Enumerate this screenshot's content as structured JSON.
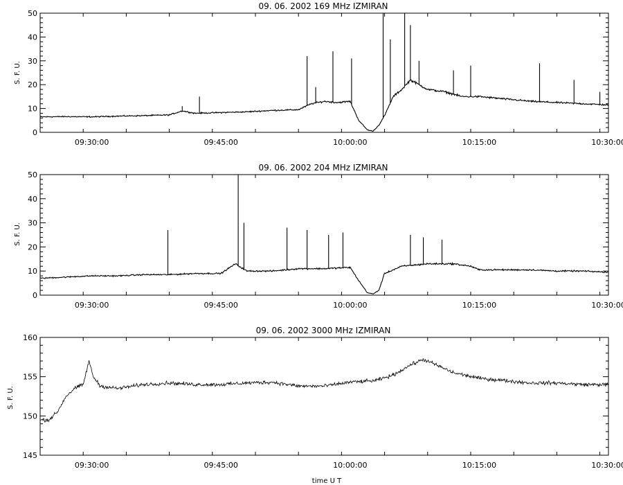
{
  "chart_data": [
    {
      "type": "line",
      "title": "09.  06.  2002    169 MHz     IZMIRAN",
      "ylabel": "S. F. U.",
      "xlabel": "",
      "x_unit": "UT (HH:MM:SS)",
      "xlim": [
        "09:24:00",
        "10:30:00"
      ],
      "ylim": [
        0,
        50
      ],
      "x_tick_labels": [
        "09:30:00",
        "09:45:00",
        "10:00:00",
        "10:15:00",
        "10:30:00"
      ],
      "y_tick_labels": [
        "0",
        "10",
        "20",
        "30",
        "40",
        "50"
      ],
      "legend": "none",
      "grid": false,
      "series": [
        {
          "x": [
            "09:24:00",
            "09:27:00",
            "09:30:00",
            "09:33:00",
            "09:36:00",
            "09:39:00",
            "09:40:30",
            "09:42:00",
            "09:45:00",
            "09:48:00",
            "09:51:00",
            "09:54:00",
            "09:55:30",
            "09:57:00",
            "09:58:30",
            "10:00:00",
            "10:01:00",
            "10:02:00",
            "10:02:40",
            "10:03:20",
            "10:04:00",
            "10:05:00",
            "10:06:00",
            "10:07:00",
            "10:09:00",
            "10:11:00",
            "10:13:00",
            "10:15:00",
            "10:18:00",
            "10:21:00",
            "10:24:00",
            "10:27:00",
            "10:30:00"
          ],
          "y": [
            6.5,
            6.6,
            6.5,
            6.8,
            7.0,
            7.3,
            9.0,
            8.0,
            8.3,
            8.6,
            9.2,
            9.5,
            12,
            13,
            12.5,
            13,
            5,
            1,
            0.5,
            3,
            7,
            15,
            18,
            22,
            18,
            17,
            15,
            15,
            14,
            13,
            12.5,
            12,
            11.5
          ]
        }
      ],
      "spikes": [
        {
          "x": "09:40:30",
          "y": 11
        },
        {
          "x": "09:42:30",
          "y": 15
        },
        {
          "x": "09:55:00",
          "y": 32
        },
        {
          "x": "09:56:00",
          "y": 19
        },
        {
          "x": "09:58:00",
          "y": 34
        },
        {
          "x": "10:00:10",
          "y": 31
        },
        {
          "x": "10:03:50",
          "y": 50
        },
        {
          "x": "10:04:40",
          "y": 39
        },
        {
          "x": "10:06:20",
          "y": 50
        },
        {
          "x": "10:07:00",
          "y": 45
        },
        {
          "x": "10:08:00",
          "y": 30
        },
        {
          "x": "10:12:00",
          "y": 26
        },
        {
          "x": "10:14:00",
          "y": 28
        },
        {
          "x": "10:22:00",
          "y": 29
        },
        {
          "x": "10:26:00",
          "y": 22
        },
        {
          "x": "10:29:00",
          "y": 17
        }
      ]
    },
    {
      "type": "line",
      "title": "09.  06.  2002    204 MHz     IZMIRAN",
      "ylabel": "S. F. U.",
      "xlabel": "",
      "x_unit": "UT (HH:MM:SS)",
      "xlim": [
        "09:24:00",
        "10:30:00"
      ],
      "ylim": [
        0,
        50
      ],
      "x_tick_labels": [
        "09:30:00",
        "09:45:00",
        "10:00:00",
        "10:15:00",
        "10:30:00"
      ],
      "y_tick_labels": [
        "0",
        "10",
        "20",
        "30",
        "40",
        "50"
      ],
      "legend": "none",
      "grid": false,
      "series": [
        {
          "x": [
            "09:24:00",
            "09:27:00",
            "09:30:00",
            "09:33:00",
            "09:36:00",
            "09:39:00",
            "09:42:00",
            "09:45:00",
            "09:46:40",
            "09:48:00",
            "09:51:00",
            "09:54:00",
            "09:57:00",
            "10:00:00",
            "10:01:00",
            "10:02:00",
            "10:02:40",
            "10:03:20",
            "10:04:00",
            "10:06:00",
            "10:09:00",
            "10:12:00",
            "10:14:00",
            "10:15:00",
            "10:18:00",
            "10:21:00",
            "10:24:00",
            "10:27:00",
            "10:30:00"
          ],
          "y": [
            7,
            7.5,
            8,
            8,
            8.5,
            8.5,
            9,
            9,
            13,
            10,
            10,
            11,
            11,
            11.5,
            6,
            1,
            0.5,
            2,
            9,
            12,
            13,
            13,
            12,
            10.5,
            10.5,
            10.5,
            10,
            10,
            9.5
          ]
        }
      ],
      "spikes": [
        {
          "x": "09:38:50",
          "y": 27
        },
        {
          "x": "09:47:00",
          "y": 50
        },
        {
          "x": "09:47:40",
          "y": 30
        },
        {
          "x": "09:52:40",
          "y": 28
        },
        {
          "x": "09:55:00",
          "y": 27
        },
        {
          "x": "09:57:30",
          "y": 25
        },
        {
          "x": "09:59:10",
          "y": 26
        },
        {
          "x": "10:07:00",
          "y": 25
        },
        {
          "x": "10:08:30",
          "y": 24
        },
        {
          "x": "10:10:40",
          "y": 23
        }
      ]
    },
    {
      "type": "line",
      "title": "09.  06.  2002    3000 MHz     IZMIRAN",
      "ylabel": "S. F. U.",
      "xlabel": "time  U T",
      "x_unit": "UT (HH:MM:SS)",
      "xlim": [
        "09:24:00",
        "10:30:00"
      ],
      "ylim": [
        145,
        160
      ],
      "x_tick_labels": [
        "09:30:00",
        "09:45:00",
        "10:00:00",
        "10:15:00",
        "10:30:00"
      ],
      "y_tick_labels": [
        "145",
        "150",
        "155",
        "160"
      ],
      "legend": "none",
      "grid": false,
      "series": [
        {
          "x": [
            "09:24:00",
            "09:25:00",
            "09:26:00",
            "09:27:00",
            "09:28:00",
            "09:29:00",
            "09:29:40",
            "09:30:10",
            "09:31:00",
            "09:33:00",
            "09:36:00",
            "09:39:00",
            "09:42:00",
            "09:45:00",
            "09:48:00",
            "09:51:00",
            "09:54:00",
            "09:57:00",
            "10:00:00",
            "10:03:00",
            "10:05:00",
            "10:07:00",
            "10:08:30",
            "10:10:00",
            "10:12:00",
            "10:15:00",
            "10:18:00",
            "10:21:00",
            "10:24:00",
            "10:27:00",
            "10:30:00"
          ],
          "y": [
            149.5,
            149.5,
            150.5,
            152.5,
            153.5,
            154,
            157,
            155,
            153.8,
            153.5,
            154,
            154.2,
            154,
            154,
            154.2,
            154.3,
            153.8,
            153.8,
            154.3,
            154.5,
            155.2,
            156.5,
            157.2,
            156.5,
            155.5,
            154.8,
            154.5,
            154.2,
            154.2,
            154,
            154
          ]
        }
      ],
      "spikes": []
    }
  ]
}
